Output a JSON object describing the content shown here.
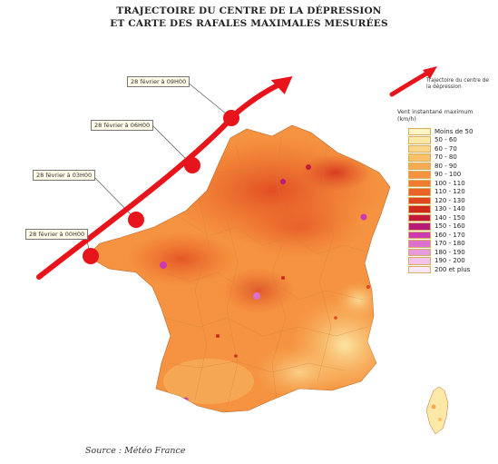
{
  "title": {
    "line1": "TRAJECTOIRE DU CENTRE DE LA DÉPRESSION",
    "line2": "ET CARTE DES RAFALES MAXIMALES MESURÉES"
  },
  "trajectory_callouts": [
    {
      "id": "t09",
      "label": "28 février à 09H00"
    },
    {
      "id": "t06",
      "label": "28 février à 06H00"
    },
    {
      "id": "t03",
      "label": "28 février à 03H00"
    },
    {
      "id": "t00",
      "label": "28 février à 00H00"
    }
  ],
  "trajectory_legend": {
    "label": "Trajectoire du centre de la dépression",
    "arrow_icon": "red-arrow-icon",
    "color": "#e8141c"
  },
  "legend": {
    "title": "Vent instantané maximum (km/h)",
    "items": [
      {
        "label": "Moins de 50",
        "color": "#fdf5c6"
      },
      {
        "label": "50 - 60",
        "color": "#fce9a8"
      },
      {
        "label": "60 - 70",
        "color": "#fbd68a"
      },
      {
        "label": "70 - 80",
        "color": "#f9c06a"
      },
      {
        "label": "80 - 90",
        "color": "#f7aa52"
      },
      {
        "label": "90 - 100",
        "color": "#f59340"
      },
      {
        "label": "100 - 110",
        "color": "#f17c30"
      },
      {
        "label": "110 - 120",
        "color": "#ea6225"
      },
      {
        "label": "120 - 130",
        "color": "#e04620"
      },
      {
        "label": "130 - 140",
        "color": "#cf2a1c"
      },
      {
        "label": "140 - 150",
        "color": "#c21a3a"
      },
      {
        "label": "150 - 160",
        "color": "#b81c7a"
      },
      {
        "label": "160 - 170",
        "color": "#cc3ab0"
      },
      {
        "label": "170 - 180",
        "color": "#dc70cc"
      },
      {
        "label": "180 - 190",
        "color": "#e89ade"
      },
      {
        "label": "190 - 200",
        "color": "#f2c4ec"
      },
      {
        "label": "200 et plus",
        "color": "#fbe8f8"
      }
    ]
  },
  "source": "Source : Météo France"
}
